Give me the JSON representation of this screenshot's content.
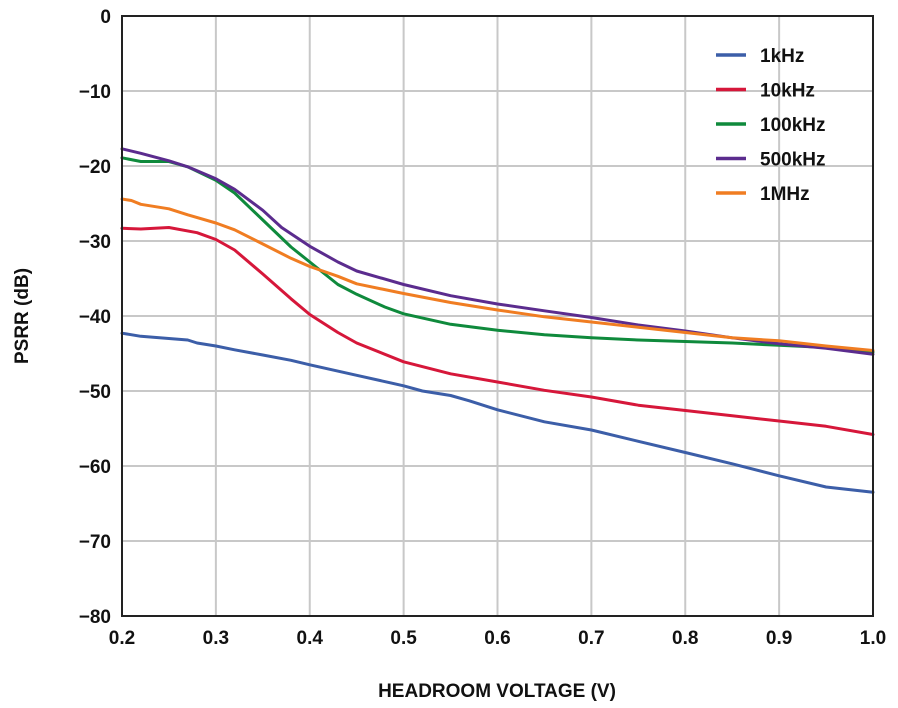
{
  "chart_data": {
    "type": "line",
    "xlabel": "HEADROOM VOLTAGE (V)",
    "ylabel": "PSRR (dB)",
    "xlim": [
      0.2,
      1.0
    ],
    "ylim": [
      -80,
      0
    ],
    "xticks": [
      "0.2",
      "0.3",
      "0.4",
      "0.5",
      "0.6",
      "0.7",
      "0.8",
      "0.9",
      "1.0"
    ],
    "yticks": [
      "0",
      "−10",
      "−20",
      "−30",
      "−40",
      "−50",
      "−60",
      "−70",
      "−80"
    ],
    "grid": true,
    "legend_position": "top-right",
    "series": [
      {
        "name": "1kHz",
        "color": "#3c5ea8",
        "x": [
          0.2,
          0.22,
          0.25,
          0.27,
          0.28,
          0.3,
          0.32,
          0.35,
          0.38,
          0.4,
          0.45,
          0.5,
          0.52,
          0.55,
          0.57,
          0.6,
          0.65,
          0.7,
          0.75,
          0.8,
          0.85,
          0.9,
          0.95,
          1.0
        ],
        "values": [
          -42.3,
          -42.7,
          -43.0,
          -43.2,
          -43.6,
          -44.0,
          -44.5,
          -45.2,
          -45.9,
          -46.5,
          -47.9,
          -49.3,
          -50.0,
          -50.6,
          -51.3,
          -52.5,
          -54.1,
          -55.2,
          -56.7,
          -58.2,
          -59.7,
          -61.3,
          -62.8,
          -63.5
        ]
      },
      {
        "name": "10kHz",
        "color": "#d6173a",
        "x": [
          0.2,
          0.22,
          0.25,
          0.28,
          0.3,
          0.32,
          0.35,
          0.38,
          0.4,
          0.43,
          0.45,
          0.5,
          0.55,
          0.6,
          0.65,
          0.7,
          0.75,
          0.8,
          0.85,
          0.9,
          0.95,
          1.0
        ],
        "values": [
          -28.3,
          -28.4,
          -28.2,
          -28.9,
          -29.8,
          -31.2,
          -34.4,
          -37.7,
          -39.8,
          -42.2,
          -43.6,
          -46.1,
          -47.7,
          -48.8,
          -49.9,
          -50.8,
          -51.9,
          -52.6,
          -53.3,
          -54.0,
          -54.7,
          -55.8
        ]
      },
      {
        "name": "100kHz",
        "color": "#0f8a3c",
        "x": [
          0.2,
          0.22,
          0.25,
          0.27,
          0.3,
          0.32,
          0.35,
          0.38,
          0.4,
          0.43,
          0.45,
          0.48,
          0.5,
          0.55,
          0.6,
          0.65,
          0.7,
          0.75,
          0.8,
          0.85,
          0.9,
          0.95,
          1.0
        ],
        "values": [
          -18.9,
          -19.4,
          -19.4,
          -20.1,
          -21.9,
          -23.6,
          -27.2,
          -30.8,
          -32.8,
          -35.8,
          -37.1,
          -38.8,
          -39.7,
          -41.1,
          -41.9,
          -42.5,
          -42.9,
          -43.2,
          -43.4,
          -43.6,
          -43.9,
          -44.2,
          -44.8
        ]
      },
      {
        "name": "500kHz",
        "color": "#5b2c8e",
        "x": [
          0.2,
          0.22,
          0.25,
          0.27,
          0.3,
          0.32,
          0.35,
          0.37,
          0.4,
          0.43,
          0.45,
          0.5,
          0.55,
          0.6,
          0.65,
          0.7,
          0.75,
          0.8,
          0.85,
          0.9,
          0.95,
          1.0
        ],
        "values": [
          -17.7,
          -18.3,
          -19.3,
          -20.1,
          -21.7,
          -23.1,
          -25.9,
          -28.2,
          -30.7,
          -32.8,
          -34.0,
          -35.8,
          -37.3,
          -38.4,
          -39.3,
          -40.2,
          -41.2,
          -42.0,
          -42.9,
          -43.7,
          -44.3,
          -45.1
        ]
      },
      {
        "name": "1MHz",
        "color": "#f07d22",
        "x": [
          0.2,
          0.21,
          0.22,
          0.25,
          0.27,
          0.3,
          0.32,
          0.35,
          0.38,
          0.4,
          0.43,
          0.45,
          0.5,
          0.55,
          0.6,
          0.65,
          0.7,
          0.75,
          0.8,
          0.85,
          0.9,
          0.95,
          1.0
        ],
        "values": [
          -24.4,
          -24.6,
          -25.1,
          -25.7,
          -26.5,
          -27.6,
          -28.5,
          -30.4,
          -32.3,
          -33.4,
          -34.7,
          -35.7,
          -37.0,
          -38.2,
          -39.2,
          -40.1,
          -40.8,
          -41.5,
          -42.2,
          -42.9,
          -43.3,
          -44.0,
          -44.6
        ]
      }
    ]
  }
}
